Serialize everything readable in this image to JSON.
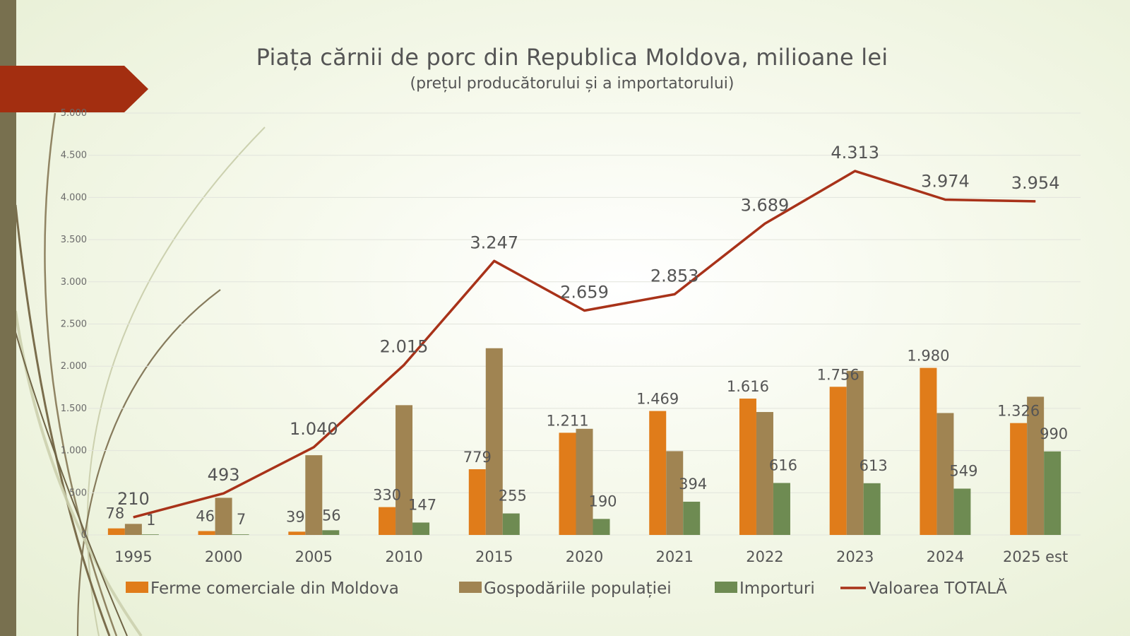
{
  "chart_data": {
    "type": "bar",
    "title": "Piața cărnii de porc din Republica Moldova, milioane lei",
    "subtitle": "(prețul producătorului și a importatorului)",
    "xlabel": "",
    "ylabel": "",
    "ylim": [
      0,
      5000
    ],
    "yticks": [
      0,
      500,
      1000,
      1500,
      2000,
      2500,
      3000,
      3500,
      4000,
      4500,
      5000
    ],
    "ytick_labels": [
      "0",
      "500",
      "1.000",
      "1.500",
      "2.000",
      "2.500",
      "3.000",
      "3.500",
      "4.000",
      "4.500",
      "5.000"
    ],
    "grid": true,
    "legend_position": "bottom",
    "categories": [
      "1995",
      "2000",
      "2005",
      "2010",
      "2015",
      "2020",
      "2021",
      "2022",
      "2023",
      "2024",
      "2025 est"
    ],
    "series": [
      {
        "name": "Ferme comerciale din Moldova",
        "kind": "bar",
        "color": "#e07c1a",
        "values": [
          78,
          46,
          39,
          330,
          779,
          1211,
          1469,
          1616,
          1756,
          1980,
          1326
        ],
        "labels": [
          "78",
          "46",
          "39",
          "330",
          "779",
          "1.211",
          "1.469",
          "1.616",
          "1.756",
          "1.980",
          "1.326"
        ]
      },
      {
        "name": "Gospodăriile populației",
        "kind": "bar",
        "color": "#a08452",
        "values": [
          131,
          440,
          945,
          1538,
          2213,
          1258,
          993,
          1457,
          1944,
          1445,
          1638
        ],
        "labels": null
      },
      {
        "name": "Importuri",
        "kind": "bar",
        "color": "#6e8b52",
        "values": [
          1,
          7,
          56,
          147,
          255,
          190,
          394,
          616,
          613,
          549,
          990
        ],
        "labels": [
          "1",
          "7",
          "56",
          "147",
          "255",
          "190",
          "394",
          "616",
          "613",
          "549",
          "990"
        ]
      },
      {
        "name": "Valoarea TOTALĂ",
        "kind": "line",
        "color": "#a83219",
        "values": [
          210,
          493,
          1040,
          2015,
          3247,
          2659,
          2853,
          3689,
          4313,
          3974,
          3954
        ],
        "labels": [
          "210",
          "493",
          "1.040",
          "2.015",
          "3.247",
          "2.659",
          "2.853",
          "3.689",
          "4.313",
          "3.974",
          "3.954"
        ]
      }
    ]
  },
  "decor": {
    "left_bar_color": "#78704f",
    "arrow_color": "#a32e10",
    "gridline_color": "#e2e4dc",
    "text_color": "#555555"
  }
}
